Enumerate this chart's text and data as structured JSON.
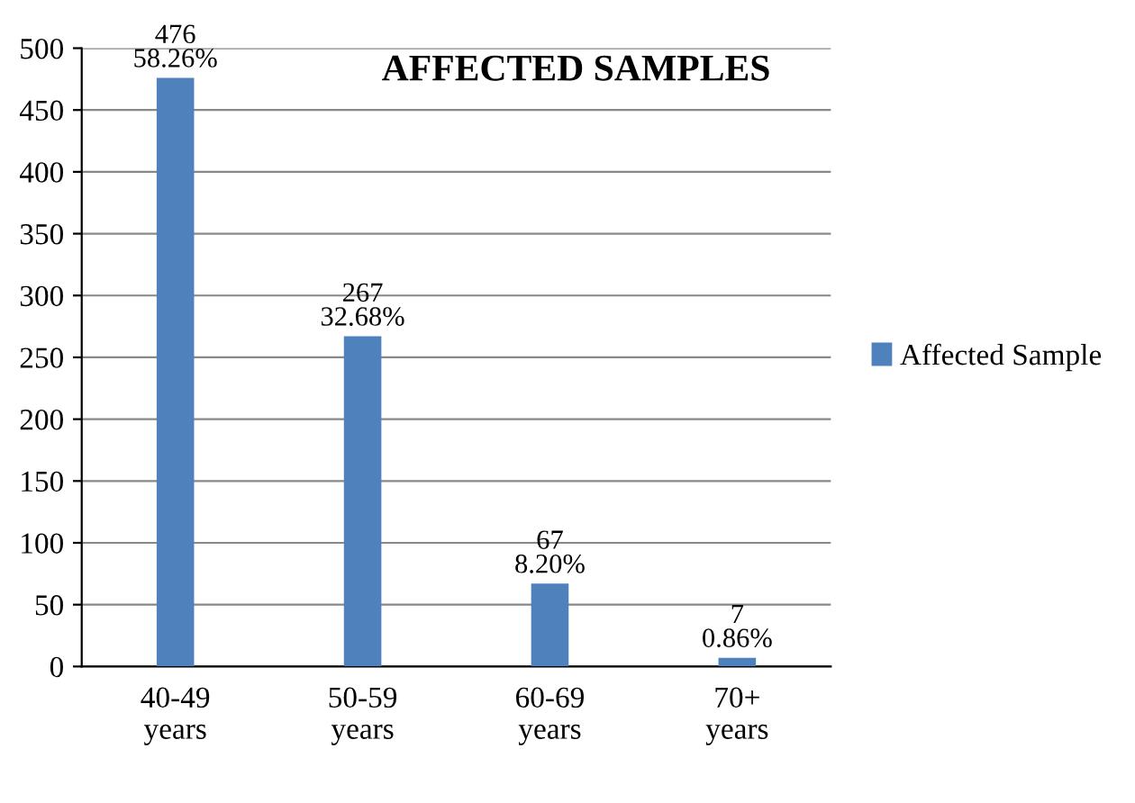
{
  "chart_data": {
    "type": "bar",
    "title": "AFFECTED SAMPLES",
    "categories": [
      "40-49\nyears",
      "50-59\nyears",
      "60-69\nyears",
      "70+\nyears"
    ],
    "series": [
      {
        "name": "Affected Sample",
        "color": "#4f81bd",
        "values": [
          476,
          267,
          67,
          7
        ],
        "value_labels": [
          "476\n58.26%",
          "267\n32.68%",
          "67\n8.20%",
          "7\n0.86%"
        ]
      }
    ],
    "ylim": [
      0,
      500
    ],
    "yticks": [
      0,
      50,
      100,
      150,
      200,
      250,
      300,
      350,
      400,
      450,
      500
    ],
    "grid": "y",
    "legend": "right"
  }
}
